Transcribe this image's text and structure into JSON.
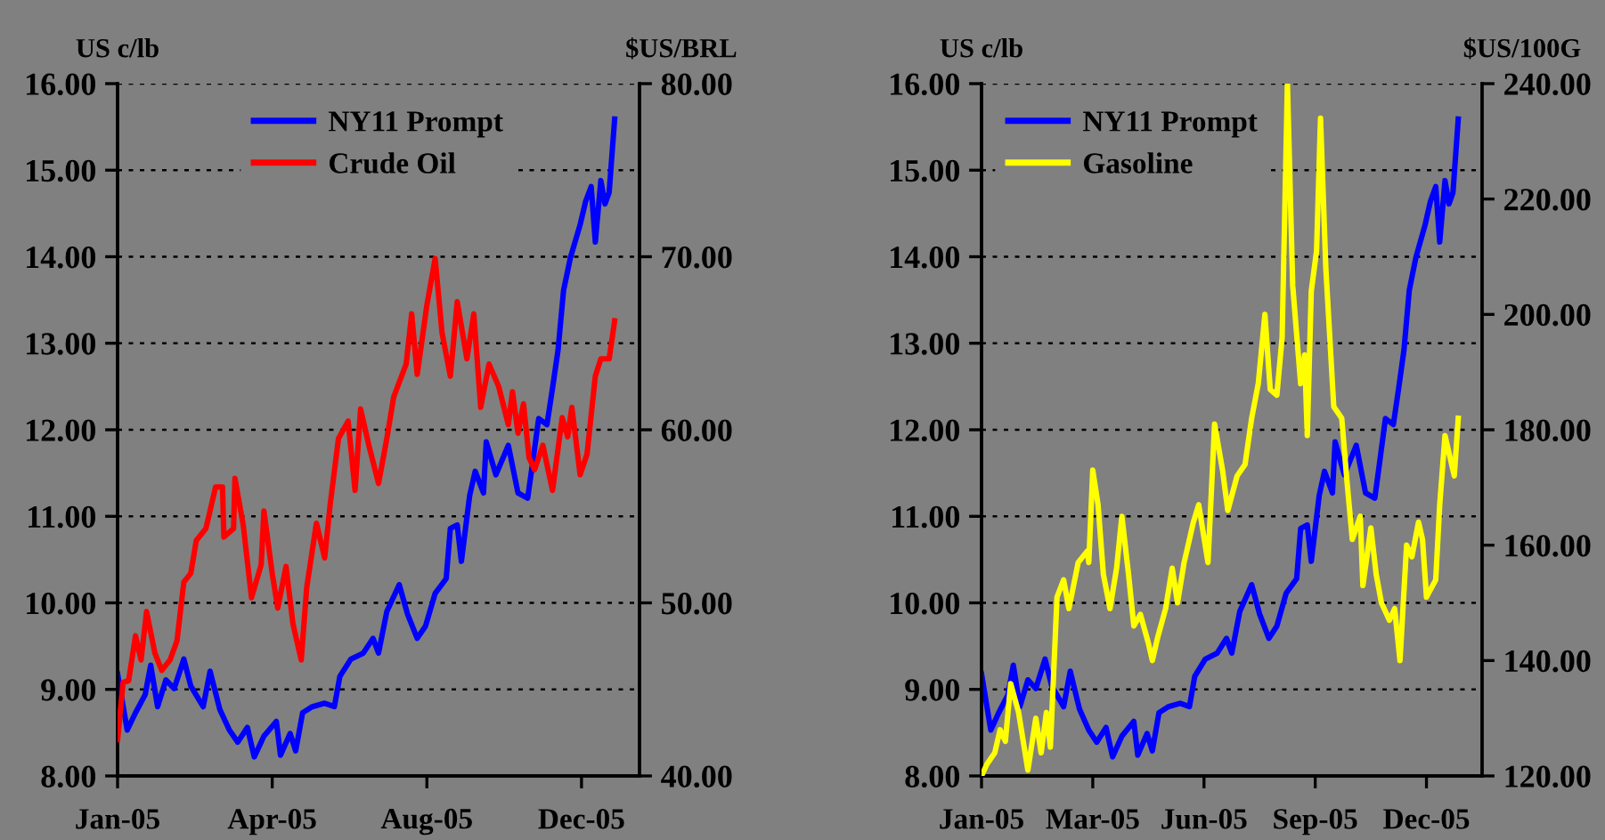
{
  "chart_data": [
    {
      "type": "line",
      "ylabel": "US c/lb",
      "y2label": "$US/BRL",
      "xlim": [
        "2005-01-03",
        "2006-01-16"
      ],
      "xticks": [
        {
          "value": "2005-01-03",
          "label": "Jan-05"
        },
        {
          "value": "2005-04-25",
          "label": "Apr-05"
        },
        {
          "value": "2005-08-15",
          "label": "Aug-05"
        },
        {
          "value": "2005-12-05",
          "label": "Dec-05"
        }
      ],
      "ylim": [
        8,
        16
      ],
      "yticks": [
        {
          "value": 8,
          "label": "8.00"
        },
        {
          "value": 9,
          "label": "9.00"
        },
        {
          "value": 10,
          "label": "10.00"
        },
        {
          "value": 11,
          "label": "11.00"
        },
        {
          "value": 12,
          "label": "12.00"
        },
        {
          "value": 13,
          "label": "13.00"
        },
        {
          "value": 14,
          "label": "14.00"
        },
        {
          "value": 15,
          "label": "15.00"
        },
        {
          "value": 16,
          "label": "16.00"
        }
      ],
      "y2lim": [
        40,
        80
      ],
      "y2ticks": [
        {
          "value": 40,
          "label": "40.00"
        },
        {
          "value": 50,
          "label": "50.00"
        },
        {
          "value": 60,
          "label": "60.00"
        },
        {
          "value": 70,
          "label": "70.00"
        },
        {
          "value": 80,
          "label": "80.00"
        }
      ],
      "grid": "y",
      "legend": "top",
      "series": [
        {
          "name": "NY11 Prompt",
          "color": "#0000ff",
          "x": [
            "2005-01-03",
            "2005-01-10",
            "2005-01-16",
            "2005-01-23",
            "2005-01-27",
            "2005-02-01",
            "2005-02-07",
            "2005-02-13",
            "2005-02-20",
            "2005-02-25",
            "2005-03-06",
            "2005-03-11",
            "2005-03-18",
            "2005-03-25",
            "2005-03-31",
            "2005-04-07",
            "2005-04-12",
            "2005-04-19",
            "2005-04-28",
            "2005-05-01",
            "2005-05-08",
            "2005-05-12",
            "2005-05-17",
            "2005-05-24",
            "2005-06-02",
            "2005-06-09",
            "2005-06-13",
            "2005-06-21",
            "2005-06-30",
            "2005-07-07",
            "2005-07-11",
            "2005-07-17",
            "2005-07-26",
            "2005-08-01",
            "2005-08-08",
            "2005-08-14",
            "2005-08-21",
            "2005-08-29",
            "2005-09-01",
            "2005-09-06",
            "2005-09-09",
            "2005-09-15",
            "2005-09-19",
            "2005-09-25",
            "2005-09-27",
            "2005-10-04",
            "2005-10-13",
            "2005-10-20",
            "2005-10-27",
            "2005-10-30",
            "2005-11-04",
            "2005-11-10",
            "2005-11-14",
            "2005-11-18",
            "2005-11-22",
            "2005-11-27",
            "2005-12-04",
            "2005-12-08",
            "2005-12-12",
            "2005-12-15",
            "2005-12-19",
            "2005-12-22",
            "2005-12-25",
            "2005-12-29"
          ],
          "values": [
            9.18,
            8.53,
            8.73,
            8.94,
            9.28,
            8.8,
            9.11,
            9.01,
            9.35,
            9.04,
            8.8,
            9.21,
            8.77,
            8.53,
            8.39,
            8.56,
            8.22,
            8.46,
            8.63,
            8.24,
            8.49,
            8.29,
            8.73,
            8.8,
            8.84,
            8.8,
            9.15,
            9.35,
            9.42,
            9.59,
            9.42,
            9.9,
            10.21,
            9.87,
            9.59,
            9.73,
            10.11,
            10.28,
            10.86,
            10.9,
            10.48,
            11.24,
            11.52,
            11.27,
            11.86,
            11.48,
            11.82,
            11.27,
            11.21,
            11.55,
            12.13,
            12.06,
            12.48,
            12.92,
            13.61,
            13.99,
            14.37,
            14.64,
            14.81,
            14.17,
            14.88,
            14.61,
            14.74,
            15.59
          ]
        },
        {
          "name": "Crude Oil",
          "color": "#ff0000",
          "axis": "y2",
          "x": [
            "2005-01-03",
            "2005-01-07",
            "2005-01-11",
            "2005-01-16",
            "2005-01-20",
            "2005-01-24",
            "2005-01-30",
            "2005-02-04",
            "2005-02-10",
            "2005-02-15",
            "2005-02-20",
            "2005-02-25",
            "2005-03-01",
            "2005-03-08",
            "2005-03-15",
            "2005-03-20",
            "2005-03-21",
            "2005-03-28",
            "2005-03-29",
            "2005-04-04",
            "2005-04-10",
            "2005-04-17",
            "2005-04-19",
            "2005-04-25",
            "2005-04-29",
            "2005-05-05",
            "2005-05-10",
            "2005-05-16",
            "2005-05-20",
            "2005-05-27",
            "2005-06-02",
            "2005-06-06",
            "2005-06-12",
            "2005-06-19",
            "2005-06-24",
            "2005-06-28",
            "2005-07-04",
            "2005-07-11",
            "2005-07-17",
            "2005-07-22",
            "2005-07-31",
            "2005-08-04",
            "2005-08-08",
            "2005-08-15",
            "2005-08-21",
            "2005-08-26",
            "2005-09-01",
            "2005-09-06",
            "2005-09-13",
            "2005-09-18",
            "2005-09-23",
            "2005-09-29",
            "2005-10-06",
            "2005-10-13",
            "2005-10-16",
            "2005-10-20",
            "2005-10-24",
            "2005-10-28",
            "2005-11-01",
            "2005-11-07",
            "2005-11-14",
            "2005-11-21",
            "2005-11-25",
            "2005-11-28",
            "2005-12-04",
            "2005-12-09",
            "2005-12-15",
            "2005-12-19",
            "2005-12-25",
            "2005-12-29"
          ],
          "values": [
            42.1,
            45.4,
            45.5,
            48.1,
            46.7,
            49.5,
            47.1,
            46.1,
            46.7,
            47.8,
            51.2,
            51.7,
            53.6,
            54.3,
            56.7,
            56.7,
            53.8,
            54.3,
            57.2,
            54.5,
            50.3,
            52.2,
            55.3,
            51.7,
            49.7,
            52.1,
            48.8,
            46.7,
            50.9,
            54.6,
            52.6,
            55.7,
            59.5,
            60.5,
            56.5,
            61.2,
            59.1,
            56.9,
            59.5,
            61.9,
            63.8,
            66.7,
            63.2,
            67.2,
            69.9,
            65.6,
            63.1,
            67.4,
            64.1,
            66.7,
            61.3,
            63.8,
            62.5,
            60.3,
            62.2,
            59.8,
            61.5,
            58.4,
            57.7,
            59.1,
            56.5,
            60.7,
            59.6,
            61.3,
            57.4,
            58.6,
            63.1,
            64.1,
            64.1,
            66.3
          ]
        }
      ]
    },
    {
      "type": "line",
      "ylabel": "US c/lb",
      "y2label": "$US/100G",
      "xlim": [
        "2005-01-03",
        "2006-01-16"
      ],
      "xticks": [
        {
          "value": "2005-01-03",
          "label": "Jan-05"
        },
        {
          "value": "2005-03-28",
          "label": "Mar-05"
        },
        {
          "value": "2005-06-20",
          "label": "Jun-05"
        },
        {
          "value": "2005-09-12",
          "label": "Sep-05"
        },
        {
          "value": "2005-12-05",
          "label": "Dec-05"
        }
      ],
      "ylim": [
        8,
        16
      ],
      "yticks": [
        {
          "value": 8,
          "label": "8.00"
        },
        {
          "value": 9,
          "label": "9.00"
        },
        {
          "value": 10,
          "label": "10.00"
        },
        {
          "value": 11,
          "label": "11.00"
        },
        {
          "value": 12,
          "label": "12.00"
        },
        {
          "value": 13,
          "label": "13.00"
        },
        {
          "value": 14,
          "label": "14.00"
        },
        {
          "value": 15,
          "label": "15.00"
        },
        {
          "value": 16,
          "label": "16.00"
        }
      ],
      "y2lim": [
        120,
        240
      ],
      "y2ticks": [
        {
          "value": 120,
          "label": "120.00"
        },
        {
          "value": 140,
          "label": "140.00"
        },
        {
          "value": 160,
          "label": "160.00"
        },
        {
          "value": 180,
          "label": "180.00"
        },
        {
          "value": 200,
          "label": "200.00"
        },
        {
          "value": 220,
          "label": "220.00"
        },
        {
          "value": 240,
          "label": "240.00"
        }
      ],
      "grid": "y",
      "legend": "top left",
      "series": [
        {
          "name": "NY11 Prompt",
          "color": "#0000ff",
          "x": [
            "2005-01-03",
            "2005-01-10",
            "2005-01-16",
            "2005-01-23",
            "2005-01-27",
            "2005-02-01",
            "2005-02-07",
            "2005-02-13",
            "2005-02-20",
            "2005-02-25",
            "2005-03-06",
            "2005-03-11",
            "2005-03-18",
            "2005-03-25",
            "2005-03-31",
            "2005-04-07",
            "2005-04-12",
            "2005-04-19",
            "2005-04-28",
            "2005-05-01",
            "2005-05-08",
            "2005-05-12",
            "2005-05-17",
            "2005-05-24",
            "2005-06-02",
            "2005-06-09",
            "2005-06-13",
            "2005-06-21",
            "2005-06-30",
            "2005-07-07",
            "2005-07-11",
            "2005-07-17",
            "2005-07-26",
            "2005-08-01",
            "2005-08-08",
            "2005-08-14",
            "2005-08-21",
            "2005-08-29",
            "2005-09-01",
            "2005-09-06",
            "2005-09-09",
            "2005-09-15",
            "2005-09-19",
            "2005-09-25",
            "2005-09-27",
            "2005-10-04",
            "2005-10-13",
            "2005-10-20",
            "2005-10-27",
            "2005-10-30",
            "2005-11-04",
            "2005-11-10",
            "2005-11-14",
            "2005-11-18",
            "2005-11-22",
            "2005-11-27",
            "2005-12-04",
            "2005-12-08",
            "2005-12-12",
            "2005-12-15",
            "2005-12-19",
            "2005-12-22",
            "2005-12-25",
            "2005-12-29"
          ],
          "values": [
            9.18,
            8.53,
            8.73,
            8.94,
            9.28,
            8.8,
            9.11,
            9.01,
            9.35,
            9.04,
            8.8,
            9.21,
            8.77,
            8.53,
            8.39,
            8.56,
            8.22,
            8.46,
            8.63,
            8.24,
            8.49,
            8.29,
            8.73,
            8.8,
            8.84,
            8.8,
            9.15,
            9.35,
            9.42,
            9.59,
            9.42,
            9.9,
            10.21,
            9.87,
            9.59,
            9.73,
            10.11,
            10.28,
            10.86,
            10.9,
            10.48,
            11.24,
            11.52,
            11.27,
            11.86,
            11.48,
            11.82,
            11.27,
            11.21,
            11.55,
            12.13,
            12.06,
            12.48,
            12.92,
            13.61,
            13.99,
            14.37,
            14.64,
            14.81,
            14.17,
            14.88,
            14.61,
            14.74,
            15.59
          ]
        },
        {
          "name": "Gasoline",
          "color": "#ffff00",
          "axis": "y2",
          "x": [
            "2005-01-03",
            "2005-01-07",
            "2005-01-13",
            "2005-01-17",
            "2005-01-21",
            "2005-01-25",
            "2005-01-31",
            "2005-02-07",
            "2005-02-13",
            "2005-02-17",
            "2005-02-21",
            "2005-02-24",
            "2005-03-01",
            "2005-03-06",
            "2005-03-10",
            "2005-03-17",
            "2005-03-24",
            "2005-03-25",
            "2005-03-28",
            "2005-04-01",
            "2005-04-05",
            "2005-04-10",
            "2005-04-15",
            "2005-04-19",
            "2005-04-24",
            "2005-04-28",
            "2005-05-03",
            "2005-05-09",
            "2005-05-12",
            "2005-05-16",
            "2005-05-22",
            "2005-05-27",
            "2005-05-31",
            "2005-06-05",
            "2005-06-12",
            "2005-06-16",
            "2005-06-23",
            "2005-06-28",
            "2005-07-04",
            "2005-07-08",
            "2005-07-15",
            "2005-07-21",
            "2005-07-26",
            "2005-07-31",
            "2005-08-05",
            "2005-08-09",
            "2005-08-14",
            "2005-08-18",
            "2005-08-22",
            "2005-08-26",
            "2005-09-01",
            "2005-09-04",
            "2005-09-06",
            "2005-09-09",
            "2005-09-13",
            "2005-09-16",
            "2005-09-20",
            "2005-09-26",
            "2005-10-02",
            "2005-10-06",
            "2005-10-10",
            "2005-10-16",
            "2005-10-18",
            "2005-10-24",
            "2005-10-28",
            "2005-11-01",
            "2005-11-07",
            "2005-11-11",
            "2005-11-15",
            "2005-11-20",
            "2005-11-24",
            "2005-11-29",
            "2005-12-02",
            "2005-12-05",
            "2005-12-12",
            "2005-12-15",
            "2005-12-19",
            "2005-12-26",
            "2005-12-29"
          ],
          "values": [
            120,
            122,
            124,
            128,
            126,
            136,
            131,
            121,
            130,
            124,
            131,
            125,
            151,
            154,
            149,
            157,
            159,
            157,
            173,
            167,
            155,
            149,
            156,
            165,
            155,
            146,
            148,
            143,
            140,
            144,
            149,
            156,
            150,
            157,
            164,
            167,
            157,
            181,
            173,
            166,
            172,
            174,
            182,
            188,
            200,
            187,
            186,
            196,
            240,
            205,
            188,
            193,
            179,
            204,
            211,
            234,
            208,
            184,
            182,
            171,
            161,
            165,
            153,
            163,
            155,
            150,
            147,
            149,
            140,
            160,
            158,
            164,
            161,
            151,
            154,
            167,
            179,
            172,
            182
          ]
        }
      ]
    }
  ]
}
